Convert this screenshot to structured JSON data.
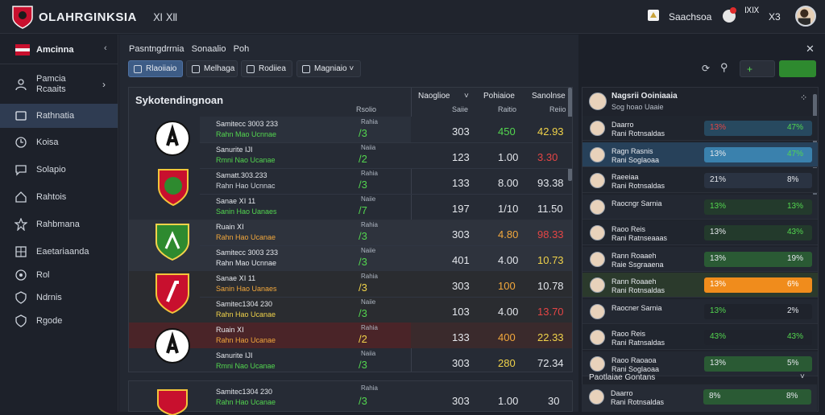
{
  "topbar": {
    "brand": "OLAHRGINKSIA",
    "brand_sub": "Ⅺ Ⅻ",
    "user_label": "Saachsoa",
    "notif_count_label": "ⅨⅨ",
    "x_label": "X3",
    "colors": {
      "accent": "#c8102e",
      "brand_bg": "#20242d"
    }
  },
  "sidebar": {
    "header": "Amcinna",
    "items": [
      {
        "label": "Pamcia\nRcaaits",
        "icon": "person-icon",
        "active": false
      },
      {
        "label": "Rathnatia",
        "icon": "trophy-icon",
        "active": true
      },
      {
        "label": "Koisa",
        "icon": "clock-icon",
        "active": false
      },
      {
        "label": "Solapio",
        "icon": "chat-icon",
        "active": false
      },
      {
        "label": "Rahtois",
        "icon": "home-icon",
        "active": false
      },
      {
        "label": "Rahbmana",
        "icon": "star-icon",
        "active": false
      },
      {
        "label": "Eaetariaanda",
        "icon": "grid-icon",
        "active": false
      },
      {
        "label": "Rol",
        "icon": "circle-icon",
        "active": false
      },
      {
        "label": "Ndrnis",
        "icon": "shield-icon",
        "active": false
      },
      {
        "label": "Rgode",
        "icon": "shield2-icon",
        "active": false
      }
    ]
  },
  "main": {
    "breadcrumb": "Pasntngdrrnia   Sonaalio   Poh",
    "tabs": [
      {
        "label": "Rlaoiiaio",
        "active": true
      },
      {
        "label": "Melhaga",
        "active": false
      },
      {
        "label": "Rodiiea",
        "active": false
      },
      {
        "label": "Magniaio ˅",
        "active": false
      }
    ],
    "panel_title": "Sykotendingnoan",
    "col_head_1": "Naoglioe",
    "col_head_2": "Pohiaioe",
    "col_head_3": "Sanolnse",
    "sub_head_a": "Rsolio",
    "sub_head_b": "Saiie",
    "sub_head_c": "Raitio",
    "sub_head_d": "Reiio",
    "matches": [
      {
        "name1": "Samitecc 3003 233",
        "name2": "Rahn Mao Ucnnae",
        "tag1": "Rahia",
        "tag2": "Naiia",
        "diff1": "/3",
        "diff2": "/2",
        "v_a1": "303",
        "v_b1": "450",
        "v_c1": "42.93",
        "v_a2": "123",
        "v_b2": "1.00",
        "v_c2": "3.30",
        "color_b1": "#53d64f",
        "color_c1": "#f1d34a",
        "color_c2": "#e54545"
      },
      {
        "name1": "Sanurite IJI",
        "name2": "Rmni Nao Ucanae",
        "tag1": "Rahia",
        "tag2": "Naiie",
        "diff1": "/3",
        "diff2": "/7",
        "v_a1": "133",
        "v_b1": "8.00",
        "v_c1": "93.38",
        "v_a2": "197",
        "v_b2": "1/10",
        "v_c2": "11.50",
        "color_b1": "#e4e7ec",
        "color_c1": "#e4e7ec",
        "color_c2": "#e4e7ec"
      },
      {
        "name1": "Samatt.303.233",
        "name2": "Rahn Hao Ucnnac",
        "tag1": "Rahia",
        "tag2": "Naiie",
        "diff1": "/3",
        "diff2": "/3",
        "v_a1": "303",
        "v_b1": "4.80",
        "v_c1": "98.33",
        "v_a2": "401",
        "v_b2": "4.00",
        "v_c2": "10.73",
        "color_b1": "#f3a83c",
        "color_c1": "#e54545",
        "color_c2": "#f1d34a"
      },
      {
        "name1": "Sanae ⅩⅠ 11",
        "name2": "Sanin Hao Uanaes",
        "tag1": "Rahia",
        "tag2": "Naiie",
        "diff1": "/3",
        "diff2": "/3",
        "v_a1": "303",
        "v_b1": "100",
        "v_c1": "10.78",
        "v_a2": "103",
        "v_b2": "4.00",
        "v_c2": "13.70",
        "color_b1": "#f3a83c",
        "color_c1": "#e4e7ec",
        "color_c2": "#e54545"
      },
      {
        "name1": "Ruain ⅩⅠ",
        "name2": "Rahn Hao Ucanae",
        "tag1": "Rahia",
        "tag2": "Naiia",
        "diff1": "/2",
        "diff2": "/3",
        "v_a1": "133",
        "v_b1": "400",
        "v_c1": "22.33",
        "v_a2": "303",
        "v_b2": "280",
        "v_c2": "72.34",
        "color_b1": "#f3a83c",
        "color_c1": "#f1d34a",
        "color_c2": "#e4e7ec"
      },
      {
        "name1": "Samitec1304 230",
        "name2": "Rahn Hao Ucanae",
        "tag1": "Rahia",
        "tag2": "",
        "diff1": "/3",
        "diff2": "",
        "v_a1": "303",
        "v_b1": "1.00",
        "v_c1": "30",
        "v_a2": "",
        "v_b2": "",
        "v_c2": "",
        "color_b1": "#e4e7ec",
        "color_c1": "#e4e7ec",
        "color_c2": "#e4e7ec"
      }
    ]
  },
  "rightpanel": {
    "header_name": "Nagsrii Ooiniaaia",
    "header_sub": "Sog hoao Uaaie",
    "section_label": "Paotlaiae Gontans",
    "players": [
      {
        "name": "Daarro\nRani Rotnsaldas",
        "v1": "13%",
        "v2": "47%",
        "bar": "#27495f",
        "c1": "#e54545",
        "c2": "#53d64f"
      },
      {
        "name": "Ragn Rasnis\nRani Soglaoaa",
        "v1": "13%",
        "v2": "47%",
        "bar": "#3a81ad",
        "c1": "#e4e7ec",
        "c2": "#53d64f"
      },
      {
        "name": "Raeeiaa\nRani Rotnsaldas",
        "v1": "21%",
        "v2": "8%",
        "bar": "#2a3342",
        "c1": "#e4e7ec",
        "c2": "#e4e7ec"
      },
      {
        "name": "Raocngr Sarnia",
        "v1": "13%",
        "v2": "13%",
        "bar": "#233a2c",
        "c1": "#53d64f",
        "c2": "#53d64f"
      },
      {
        "name": "Raoo Reis\nRani Ratnseaaas",
        "v1": "13%",
        "v2": "43%",
        "bar": "#233a2c",
        "c1": "#e4e7ec",
        "c2": "#53d64f"
      },
      {
        "name": "Rann Roaaeh\nRaie Ssgraaena",
        "v1": "13%",
        "v2": "19%",
        "bar": "#2a5a34",
        "c1": "#e4e7ec",
        "c2": "#e4e7ec"
      },
      {
        "name": "Rann Roaaeh\nRani Rotnsaldas",
        "v1": "13%",
        "v2": "6%",
        "bar": "#f08c1c",
        "c1": "#ffffff",
        "c2": "#ffffff"
      },
      {
        "name": "Raocner Sarnia",
        "v1": "13%",
        "v2": "2%",
        "bar": "#1f232c",
        "c1": "#53d64f",
        "c2": "#e4e7ec"
      },
      {
        "name": "Raoo Reis\nRani Ratnsaldas",
        "v1": "43%",
        "v2": "43%",
        "bar": "#1f232c",
        "c1": "#53d64f",
        "c2": "#53d64f"
      },
      {
        "name": "Raoo Raoaoa\nRani Soglaoaa",
        "v1": "13%",
        "v2": "5%",
        "bar": "#2a5a34",
        "c1": "#e4e7ec",
        "c2": "#e4e7ec"
      }
    ],
    "bottom_player": {
      "name": "Daarro\nRani Rotnsaldas",
      "v1": "8%",
      "v2": "8%"
    }
  }
}
